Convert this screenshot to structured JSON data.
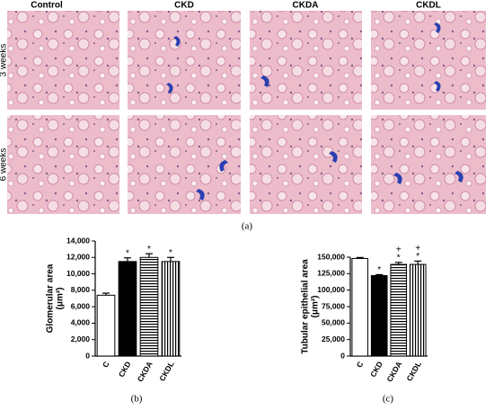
{
  "figure": {
    "column_headers": [
      "Control",
      "CKD",
      "CKDA",
      "CKDL"
    ],
    "row_labels": [
      "3 weeks",
      "6 weeks"
    ],
    "panel_a_label": "(a)"
  },
  "chart_data": [
    {
      "type": "bar",
      "panel_label": "(b)",
      "ylabel": [
        "Glomerular area",
        "(μm²)"
      ],
      "categories": [
        "C",
        "CKD",
        "CKDA",
        "CKDL"
      ],
      "values": [
        7400,
        11500,
        12000,
        11500
      ],
      "errors": [
        250,
        450,
        450,
        500
      ],
      "fills": [
        "white",
        "black",
        "hstripes",
        "vstripes"
      ],
      "annotations": [
        [],
        [
          "*"
        ],
        [
          "*"
        ],
        [
          "*"
        ]
      ],
      "ylim": [
        0,
        14000
      ],
      "yticks": [
        0,
        {
          "value": 2000,
          "label": "2,000"
        },
        {
          "value": 4000,
          "label": "4,000"
        },
        {
          "value": 6000,
          "label": "6,000"
        },
        {
          "value": 8000,
          "label": "8,000"
        },
        {
          "value": 10000,
          "label": "10,000"
        },
        {
          "value": 12000,
          "label": "12,000"
        },
        {
          "value": 14000,
          "label": "14,000"
        }
      ]
    },
    {
      "type": "bar",
      "panel_label": "(c)",
      "ylabel": [
        "Tubular epithelial area",
        "(μm²)"
      ],
      "categories": [
        "C",
        "CKD",
        "CKDA",
        "CKDL"
      ],
      "values": [
        148000,
        122000,
        139000,
        139000
      ],
      "errors": [
        1500,
        1500,
        3000,
        5000
      ],
      "fills": [
        "white",
        "black",
        "hstripes",
        "vstripes"
      ],
      "annotations": [
        [],
        [
          "*"
        ],
        [
          "+",
          "*"
        ],
        [
          "+",
          "*"
        ]
      ],
      "ylim": [
        0,
        150000
      ],
      "yticks": [
        0,
        {
          "value": 25000,
          "label": "25,000"
        },
        {
          "value": 50000,
          "label": "50,000"
        },
        {
          "value": 75000,
          "label": "75,000"
        },
        {
          "value": 100000,
          "label": "100,000"
        },
        {
          "value": 125000,
          "label": "125,000"
        },
        {
          "value": 150000,
          "label": "150,000"
        }
      ]
    }
  ]
}
